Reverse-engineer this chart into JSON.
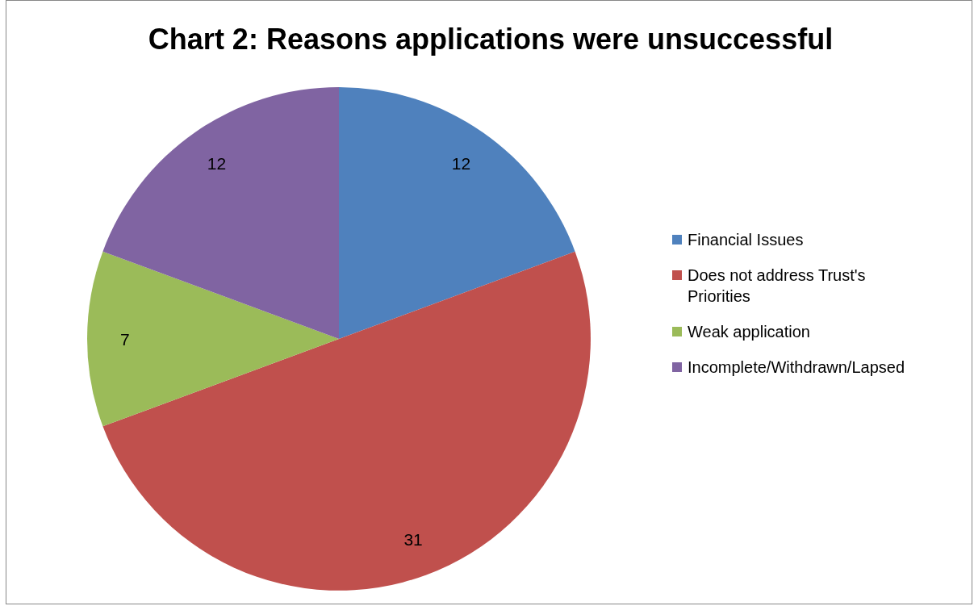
{
  "chart_data": {
    "type": "pie",
    "title": "Chart 2: Reasons applications were unsuccessful",
    "categories": [
      "Financial Issues",
      "Does not address Trust's Priorities",
      "Weak application",
      "Incomplete/Withdrawn/Lapsed"
    ],
    "values": [
      12,
      31,
      7,
      12
    ],
    "colors": [
      "#4f81bd",
      "#c0504d",
      "#9bbb59",
      "#8064a2"
    ],
    "data_labels": true,
    "legend": "right"
  }
}
